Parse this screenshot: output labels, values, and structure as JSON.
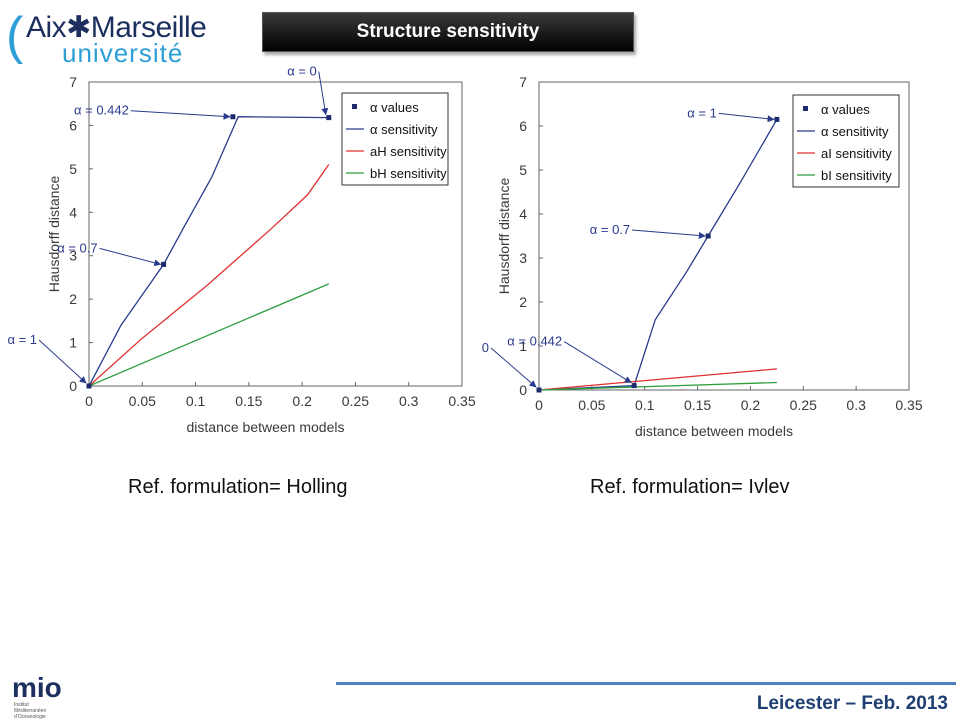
{
  "header": {
    "logo_line1": "Aix✱Marseille",
    "logo_line2": "université",
    "title": "Structure sensitivity"
  },
  "footer": {
    "text": "Leicester – Feb. 2013",
    "mio_logo": "mio",
    "mio_sub": "Institut Méditerranéen d'Océanologie"
  },
  "chart_data": [
    {
      "type": "line",
      "caption": "Ref. formulation= Holling",
      "xlabel": "distance between models",
      "ylabel": "Hausdorff distance",
      "xlim": [
        0,
        0.35
      ],
      "ylim": [
        0,
        7
      ],
      "xticks": [
        "0",
        "0.05",
        "0.1",
        "0.15",
        "0.2",
        "0.25",
        "0.3",
        "0.35"
      ],
      "yticks": [
        "0",
        "1",
        "2",
        "3",
        "4",
        "5",
        "6",
        "7"
      ],
      "legend": [
        "α values",
        "α sensitivity",
        "aH sensitivity",
        "bH sensitivity"
      ],
      "legend_position": "top-right",
      "series": [
        {
          "name": "α sensitivity",
          "color": "#2a3a8c",
          "x": [
            0,
            0.03,
            0.07,
            0.09,
            0.115,
            0.14,
            0.225
          ],
          "y": [
            0,
            1.4,
            2.8,
            3.7,
            4.8,
            6.2,
            6.18
          ]
        },
        {
          "name": "aH sensitivity",
          "color": "#e03030",
          "x": [
            0,
            0.05,
            0.11,
            0.17,
            0.205,
            0.225
          ],
          "y": [
            0,
            1.1,
            2.3,
            3.6,
            4.4,
            5.1
          ]
        },
        {
          "name": "bH sensitivity",
          "color": "#2e9e3e",
          "x": [
            0,
            0.225
          ],
          "y": [
            0,
            2.35
          ]
        }
      ],
      "points": [
        {
          "x": 0,
          "y": 0,
          "label": "α = 1"
        },
        {
          "x": 0.07,
          "y": 2.8,
          "label": "α = 0.7"
        },
        {
          "x": 0.135,
          "y": 6.2,
          "label": "α = 0.442"
        },
        {
          "x": 0.225,
          "y": 6.18,
          "label": "α = 0"
        }
      ]
    },
    {
      "type": "line",
      "caption": "Ref. formulation= Ivlev",
      "xlabel": "distance between models",
      "ylabel": "Hausdorff distance",
      "xlim": [
        0,
        0.35
      ],
      "ylim": [
        0,
        7
      ],
      "xticks": [
        "0",
        "0.05",
        "0.1",
        "0.15",
        "0.2",
        "0.25",
        "0.3",
        "0.35"
      ],
      "yticks": [
        "0",
        "1",
        "2",
        "3",
        "4",
        "5",
        "6",
        "7"
      ],
      "legend": [
        "α values",
        "α sensitivity",
        "aI sensitivity",
        "bI sensitivity"
      ],
      "legend_position": "top-right",
      "series": [
        {
          "name": "α sensitivity",
          "color": "#2a3a8c",
          "x": [
            0,
            0.09,
            0.11,
            0.14,
            0.16,
            0.19,
            0.225
          ],
          "y": [
            0,
            0.1,
            1.6,
            2.7,
            3.5,
            4.7,
            6.15
          ]
        },
        {
          "name": "aI sensitivity",
          "color": "#e03030",
          "x": [
            0,
            0.225
          ],
          "y": [
            0,
            0.48
          ]
        },
        {
          "name": "bI sensitivity",
          "color": "#2e9e3e",
          "x": [
            0,
            0.225
          ],
          "y": [
            0,
            0.17
          ]
        }
      ],
      "points": [
        {
          "x": 0,
          "y": 0,
          "label": "α = 0"
        },
        {
          "x": 0.09,
          "y": 0.1,
          "label": "α = 0.442"
        },
        {
          "x": 0.16,
          "y": 3.5,
          "label": "α = 0.7"
        },
        {
          "x": 0.225,
          "y": 6.15,
          "label": "α = 1"
        }
      ]
    }
  ]
}
